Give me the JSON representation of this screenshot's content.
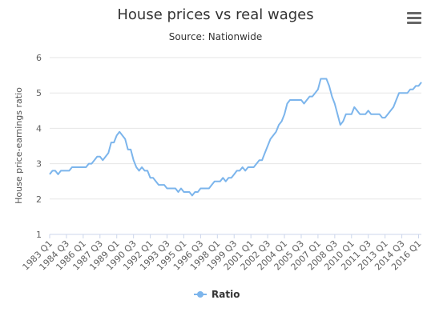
{
  "menu": {
    "icon": "hamburger-menu-icon"
  },
  "chart_data": {
    "type": "line",
    "title": "House prices vs real wages",
    "subtitle": "Source: Nationwide",
    "ylabel": "House price-earnings ratio",
    "xlabel": "",
    "ylim": [
      1,
      6
    ],
    "y_ticks": [
      1,
      2,
      3,
      4,
      5,
      6
    ],
    "grid": true,
    "legend": "bottom-center",
    "x_start": "1983 Q1",
    "x_tick_labels": [
      "1983 Q1",
      "1984 Q3",
      "1986 Q1",
      "1987 Q3",
      "1989 Q1",
      "1990 Q3",
      "1992 Q1",
      "1993 Q3",
      "1995 Q1",
      "1996 Q3",
      "1998 Q1",
      "1999 Q3",
      "2001 Q1",
      "2002 Q3",
      "2004 Q1",
      "2005 Q3",
      "2007 Q1",
      "2008 Q3",
      "2010 Q1",
      "2011 Q3",
      "2013 Q1",
      "2014 Q3",
      "2016 Q1"
    ],
    "series": [
      {
        "name": "Ratio",
        "color": "#7cb5ec",
        "values": [
          2.7,
          2.8,
          2.8,
          2.7,
          2.8,
          2.8,
          2.8,
          2.8,
          2.9,
          2.9,
          2.9,
          2.9,
          2.9,
          2.9,
          3.0,
          3.0,
          3.1,
          3.2,
          3.2,
          3.1,
          3.2,
          3.3,
          3.6,
          3.6,
          3.8,
          3.9,
          3.8,
          3.7,
          3.4,
          3.4,
          3.1,
          2.9,
          2.8,
          2.9,
          2.8,
          2.8,
          2.6,
          2.6,
          2.5,
          2.4,
          2.4,
          2.4,
          2.3,
          2.3,
          2.3,
          2.3,
          2.2,
          2.3,
          2.2,
          2.2,
          2.2,
          2.1,
          2.2,
          2.2,
          2.3,
          2.3,
          2.3,
          2.3,
          2.4,
          2.5,
          2.5,
          2.5,
          2.6,
          2.5,
          2.6,
          2.6,
          2.7,
          2.8,
          2.8,
          2.9,
          2.8,
          2.9,
          2.9,
          2.9,
          3.0,
          3.1,
          3.1,
          3.3,
          3.5,
          3.7,
          3.8,
          3.9,
          4.1,
          4.2,
          4.4,
          4.7,
          4.8,
          4.8,
          4.8,
          4.8,
          4.8,
          4.7,
          4.8,
          4.9,
          4.9,
          5.0,
          5.1,
          5.4,
          5.4,
          5.4,
          5.2,
          4.9,
          4.7,
          4.4,
          4.1,
          4.2,
          4.4,
          4.4,
          4.4,
          4.6,
          4.5,
          4.4,
          4.4,
          4.4,
          4.5,
          4.4,
          4.4,
          4.4,
          4.4,
          4.3,
          4.3,
          4.4,
          4.5,
          4.6,
          4.8,
          5.0,
          5.0,
          5.0,
          5.0,
          5.1,
          5.1,
          5.2,
          5.2,
          5.3
        ]
      }
    ]
  }
}
